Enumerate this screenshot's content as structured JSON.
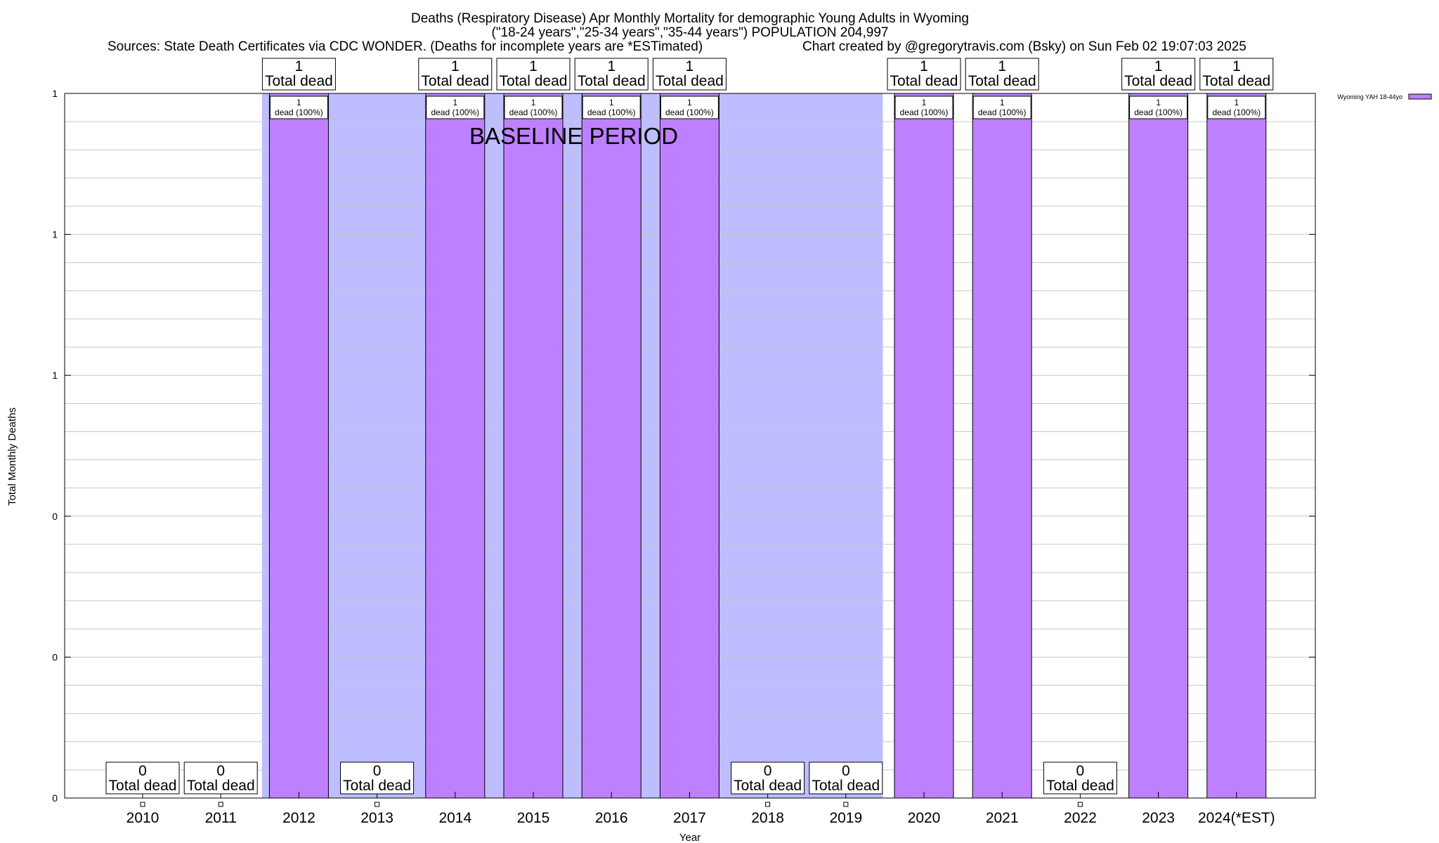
{
  "colors": {
    "bar": "#bf80ff",
    "baseline_shade": "#bdbdff",
    "grid": "#c8c8c8",
    "axis": "#000000",
    "label_box": "#ffffff"
  },
  "chart_data": {
    "type": "bar",
    "title_lines": [
      "Deaths (Respiratory Disease) Apr Monthly Mortality for demographic Young Adults in Wyoming",
      "(\"18-24 years\",\"25-34 years\",\"35-44 years\") POPULATION 204,997"
    ],
    "source_line": "Sources: State Death Certificates via CDC WONDER. (Deaths for incomplete years are *ESTimated)",
    "credit_line": "Chart created by @gregorytravis.com (Bsky) on Sun Feb 02 19:07:03 2025",
    "xlabel": "Year",
    "ylabel": "Total Monthly Deaths",
    "ylim": [
      0,
      1
    ],
    "y_tick_labels": [
      "0",
      "0",
      "0",
      "1",
      "1",
      "1"
    ],
    "grid": true,
    "legend_position": "top-right",
    "categories": [
      "2010",
      "2011",
      "2012",
      "2013",
      "2014",
      "2015",
      "2016",
      "2017",
      "2018",
      "2019",
      "2020",
      "2021",
      "2022",
      "2023",
      "2024(*EST)"
    ],
    "series": [
      {
        "name": "Wyoming YAH 18-44yo",
        "values": [
          0,
          0,
          1,
          0,
          1,
          1,
          1,
          1,
          0,
          0,
          1,
          1,
          0,
          1,
          1
        ]
      }
    ],
    "total_labels": [
      [
        "0",
        "Total dead"
      ],
      [
        "0",
        "Total dead"
      ],
      [
        "1",
        "Total dead"
      ],
      [
        "0",
        "Total dead"
      ],
      [
        "1",
        "Total dead"
      ],
      [
        "1",
        "Total dead"
      ],
      [
        "1",
        "Total dead"
      ],
      [
        "1",
        "Total dead"
      ],
      [
        "0",
        "Total dead"
      ],
      [
        "0",
        "Total dead"
      ],
      [
        "1",
        "Total dead"
      ],
      [
        "1",
        "Total dead"
      ],
      [
        "0",
        "Total dead"
      ],
      [
        "1",
        "Total dead"
      ],
      [
        "1",
        "Total dead"
      ]
    ],
    "bar_labels": [
      "",
      "",
      "1|dead (100%)",
      "",
      "1|dead (100%)",
      "1|dead (100%)",
      "1|dead (100%)",
      "1|dead (100%)",
      "",
      "",
      "1|dead (100%)",
      "1|dead (100%)",
      "",
      "1|dead (100%)",
      "1|dead (100%)"
    ],
    "baseline_period": {
      "label": "BASELINE PERIOD",
      "start": "2012",
      "end": "2019"
    }
  }
}
